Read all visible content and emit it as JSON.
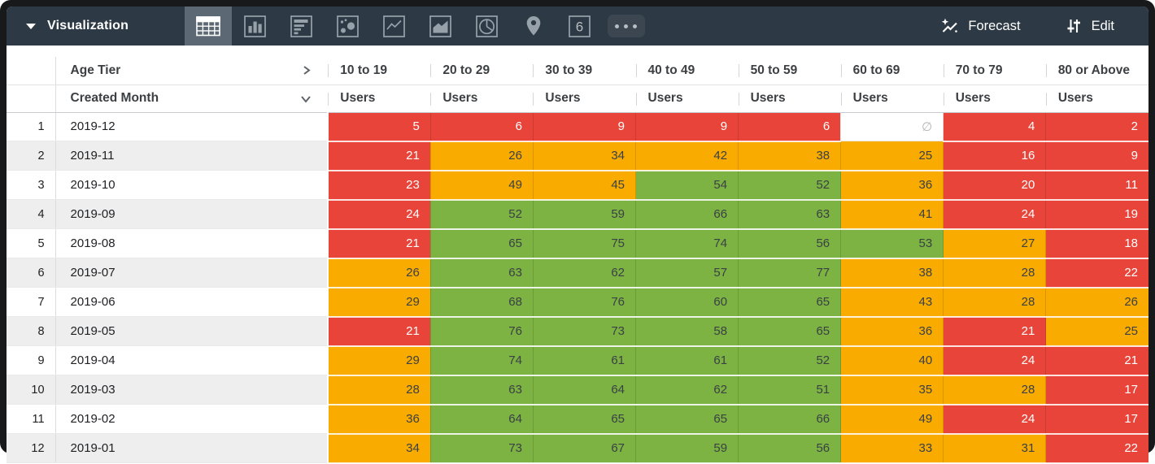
{
  "toolbar": {
    "title": "Visualization",
    "forecast_label": "Forecast",
    "edit_label": "Edit",
    "viz_tabs": [
      {
        "id": "table",
        "icon": "table-grid-icon",
        "selected": true
      },
      {
        "id": "column-chart",
        "icon": "column-chart-icon",
        "selected": false
      },
      {
        "id": "bar-chart",
        "icon": "bar-chart-icon",
        "selected": false
      },
      {
        "id": "scatter",
        "icon": "scatter-plot-icon",
        "selected": false
      },
      {
        "id": "line-chart",
        "icon": "line-chart-icon",
        "selected": false
      },
      {
        "id": "area-chart",
        "icon": "area-chart-icon",
        "selected": false
      },
      {
        "id": "pie-chart",
        "icon": "pie-chart-icon",
        "selected": false
      },
      {
        "id": "map",
        "icon": "map-pin-icon",
        "selected": false
      },
      {
        "id": "single-value",
        "icon": "single-value-icon",
        "label": "6",
        "selected": false
      },
      {
        "id": "more",
        "icon": "more-options-icon",
        "selected": false
      }
    ]
  },
  "table": {
    "pivot_dimension": "Age Tier",
    "row_dimension": "Created Month",
    "measure": "Users",
    "columns": [
      "10 to 19",
      "20 to 29",
      "30 to 39",
      "40 to 49",
      "50 to 59",
      "60 to 69",
      "70 to 79",
      "80 or Above"
    ],
    "null_symbol": "∅",
    "format": {
      "red_below": 25,
      "green_from": 50
    },
    "palette": {
      "red": "#e8443a",
      "orange": "#f9ab00",
      "green": "#7cb342"
    },
    "rows": [
      {
        "num": 1,
        "month": "2019-12",
        "values": [
          5,
          6,
          9,
          9,
          6,
          null,
          4,
          2
        ]
      },
      {
        "num": 2,
        "month": "2019-11",
        "values": [
          21,
          26,
          34,
          42,
          38,
          25,
          16,
          9
        ]
      },
      {
        "num": 3,
        "month": "2019-10",
        "values": [
          23,
          49,
          45,
          54,
          52,
          36,
          20,
          11
        ]
      },
      {
        "num": 4,
        "month": "2019-09",
        "values": [
          24,
          52,
          59,
          66,
          63,
          41,
          24,
          19
        ]
      },
      {
        "num": 5,
        "month": "2019-08",
        "values": [
          21,
          65,
          75,
          74,
          56,
          53,
          27,
          18
        ]
      },
      {
        "num": 6,
        "month": "2019-07",
        "values": [
          26,
          63,
          62,
          57,
          77,
          38,
          28,
          22
        ]
      },
      {
        "num": 7,
        "month": "2019-06",
        "values": [
          29,
          68,
          76,
          60,
          65,
          43,
          28,
          26
        ]
      },
      {
        "num": 8,
        "month": "2019-05",
        "values": [
          21,
          76,
          73,
          58,
          65,
          36,
          21,
          25
        ]
      },
      {
        "num": 9,
        "month": "2019-04",
        "values": [
          29,
          74,
          61,
          61,
          52,
          40,
          24,
          21
        ]
      },
      {
        "num": 10,
        "month": "2019-03",
        "values": [
          28,
          63,
          64,
          62,
          51,
          35,
          28,
          17
        ]
      },
      {
        "num": 11,
        "month": "2019-02",
        "values": [
          36,
          64,
          65,
          65,
          66,
          49,
          24,
          17
        ]
      },
      {
        "num": 12,
        "month": "2019-01",
        "values": [
          34,
          73,
          67,
          59,
          56,
          33,
          31,
          22
        ]
      }
    ]
  }
}
